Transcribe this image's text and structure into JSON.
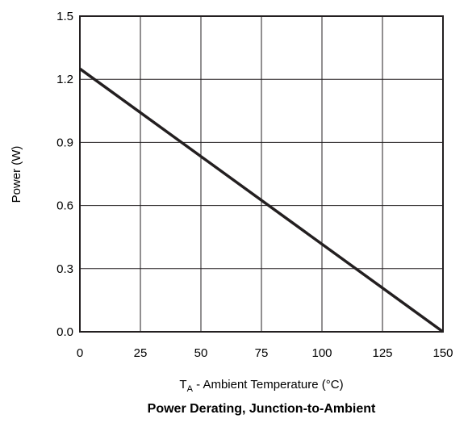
{
  "chart_data": {
    "type": "line",
    "title": "Power Derating, Junction-to-Ambient",
    "xlabel_main": "T",
    "xlabel_sub": "A",
    "xlabel_rest": " - Ambient Temperature (°C)",
    "ylabel": "Power (W)",
    "x_ticks": [
      "0",
      "25",
      "50",
      "75",
      "100",
      "125",
      "150"
    ],
    "y_ticks": [
      "0.0",
      "0.3",
      "0.6",
      "0.9",
      "1.2",
      "1.5"
    ],
    "xlim": [
      0,
      150
    ],
    "ylim": [
      0,
      1.5
    ],
    "grid": true,
    "series": [
      {
        "x": [
          0,
          150
        ],
        "y": [
          1.25,
          0
        ]
      }
    ],
    "colors": {
      "line": "#231f20",
      "grid": "#231f20",
      "text": "#000000"
    }
  }
}
